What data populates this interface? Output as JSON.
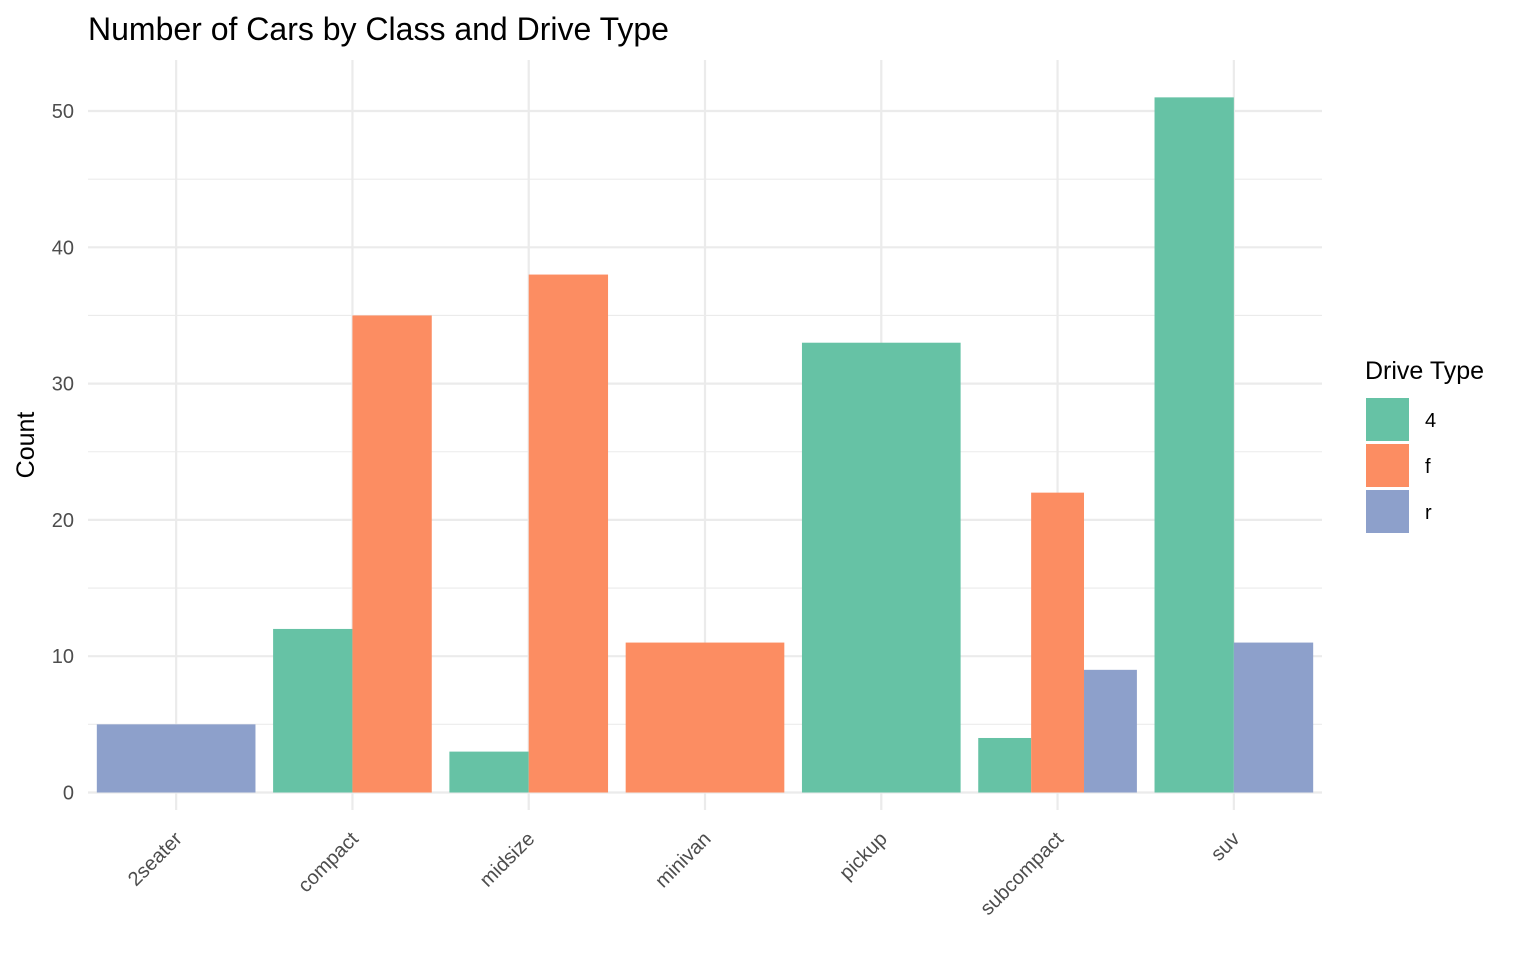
{
  "chart_data": {
    "type": "bar",
    "title": "Number of Cars by Class and Drive Type",
    "xlabel": "",
    "ylabel": "Count",
    "categories": [
      "2seater",
      "compact",
      "midsize",
      "minivan",
      "pickup",
      "subcompact",
      "suv"
    ],
    "series": [
      {
        "name": "4",
        "color": "#66c2a5",
        "values": [
          0,
          12,
          3,
          0,
          33,
          4,
          51
        ]
      },
      {
        "name": "f",
        "color": "#fc8d62",
        "values": [
          0,
          35,
          38,
          11,
          0,
          22,
          0
        ]
      },
      {
        "name": "r",
        "color": "#8da0cb",
        "values": [
          5,
          0,
          0,
          0,
          0,
          9,
          11
        ]
      }
    ],
    "ylim": [
      0,
      53.5
    ],
    "yticks": [
      0,
      10,
      20,
      30,
      40,
      50
    ],
    "grid": true,
    "legend": {
      "title": "Drive Type",
      "position": "right"
    },
    "position": "dodge"
  }
}
